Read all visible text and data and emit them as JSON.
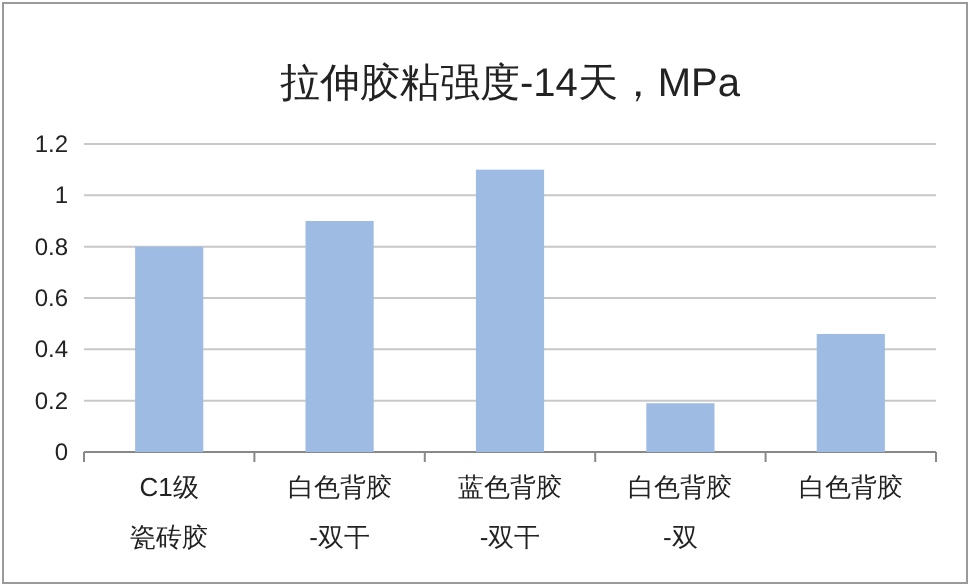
{
  "chart_data": {
    "type": "bar",
    "title": "拉伸胶粘强度-14天，MPa",
    "categories": [
      "C1级瓷砖胶",
      "白色背胶-双干",
      "蓝色背胶-双干",
      "白色背胶-双",
      "白色背胶"
    ],
    "values": [
      0.8,
      0.9,
      1.1,
      0.19,
      0.46
    ],
    "color": "#9dbbe3",
    "ylim": [
      0,
      1.2
    ],
    "yticks": [
      0,
      0.2,
      0.4,
      0.6,
      0.8,
      1,
      1.2
    ],
    "grid": "y"
  }
}
